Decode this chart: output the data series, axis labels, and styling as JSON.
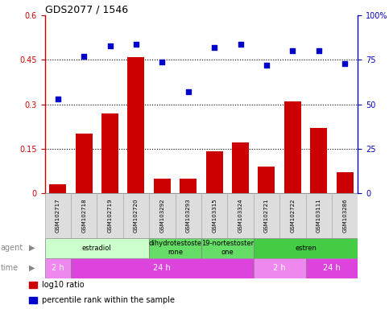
{
  "title": "GDS2077 / 1546",
  "samples": [
    "GSM102717",
    "GSM102718",
    "GSM102719",
    "GSM102720",
    "GSM103292",
    "GSM103293",
    "GSM103315",
    "GSM103324",
    "GSM102721",
    "GSM102722",
    "GSM103111",
    "GSM103286"
  ],
  "log10_ratio": [
    0.03,
    0.2,
    0.27,
    0.46,
    0.05,
    0.05,
    0.14,
    0.17,
    0.09,
    0.31,
    0.22,
    0.07
  ],
  "percentile_rank": [
    53,
    77,
    83,
    84,
    74,
    57,
    82,
    84,
    72,
    80,
    80,
    73
  ],
  "bar_color": "#cc0000",
  "scatter_color": "#0000cc",
  "ylim_left": [
    0,
    0.6
  ],
  "ylim_right": [
    0,
    100
  ],
  "yticks_left": [
    0,
    0.15,
    0.3,
    0.45,
    0.6
  ],
  "yticks_right": [
    0,
    25,
    50,
    75,
    100
  ],
  "ytick_labels_left": [
    "0",
    "0.15",
    "0.3",
    "0.45",
    "0.6"
  ],
  "ytick_labels_right": [
    "0",
    "25",
    "50",
    "75",
    "100%"
  ],
  "hlines": [
    0.15,
    0.3,
    0.45
  ],
  "agent_groups": [
    {
      "label": "estradiol",
      "start": 0,
      "end": 4,
      "color": "#ccffcc"
    },
    {
      "label": "dihydrotestoste\nrone",
      "start": 4,
      "end": 6,
      "color": "#66dd66"
    },
    {
      "label": "19-nortestoster\none",
      "start": 6,
      "end": 8,
      "color": "#66dd66"
    },
    {
      "label": "estren",
      "start": 8,
      "end": 12,
      "color": "#44cc44"
    }
  ],
  "time_groups": [
    {
      "label": "2 h",
      "start": 0,
      "end": 1,
      "color": "#ee88ee"
    },
    {
      "label": "24 h",
      "start": 1,
      "end": 8,
      "color": "#dd44dd"
    },
    {
      "label": "2 h",
      "start": 8,
      "end": 10,
      "color": "#ee88ee"
    },
    {
      "label": "24 h",
      "start": 10,
      "end": 12,
      "color": "#dd44dd"
    }
  ],
  "legend_items": [
    {
      "color": "#cc0000",
      "label": "log10 ratio"
    },
    {
      "color": "#0000cc",
      "label": "percentile rank within the sample"
    }
  ],
  "left_axis_color": "#cc0000",
  "right_axis_color": "#0000cc",
  "label_color": "#888888",
  "cell_bg": "#dddddd",
  "cell_edge": "#aaaaaa"
}
